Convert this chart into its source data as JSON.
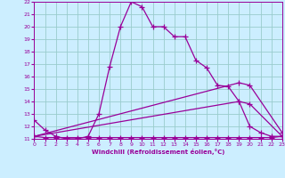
{
  "xlabel": "Windchill (Refroidissement éolien,°C)",
  "bg_color": "#cceeff",
  "grid_color": "#99cccc",
  "line_color": "#990099",
  "xmin": 0,
  "xmax": 23,
  "ymin": 11,
  "ymax": 22,
  "line1_x": [
    0,
    1,
    2,
    3,
    4,
    5,
    6,
    7,
    8,
    9,
    10,
    11,
    12,
    13,
    14,
    15,
    16,
    17,
    18,
    19,
    20,
    21,
    22,
    23
  ],
  "line1_y": [
    12.5,
    11.7,
    11.2,
    11.0,
    11.0,
    11.2,
    13.0,
    16.8,
    20.0,
    22.0,
    21.6,
    20.0,
    20.0,
    19.2,
    19.2,
    17.3,
    16.7,
    15.3,
    15.2,
    14.0,
    12.0,
    11.5,
    11.2,
    11.2
  ],
  "line2_x": [
    0,
    1,
    2,
    3,
    4,
    5,
    6,
    7,
    8,
    9,
    10,
    11,
    12,
    13,
    14,
    15,
    16,
    17,
    18,
    19,
    20,
    21,
    22,
    23
  ],
  "line2_y": [
    11.2,
    11.1,
    11.1,
    11.1,
    11.1,
    11.1,
    11.1,
    11.1,
    11.1,
    11.1,
    11.1,
    11.1,
    11.1,
    11.1,
    11.1,
    11.1,
    11.1,
    11.1,
    11.1,
    11.1,
    11.1,
    11.1,
    11.1,
    11.2
  ],
  "line3_x": [
    0,
    19,
    20,
    23
  ],
  "line3_y": [
    11.2,
    14.0,
    13.8,
    11.2
  ],
  "line4_x": [
    0,
    19,
    20,
    23
  ],
  "line4_y": [
    11.2,
    15.5,
    15.3,
    11.5
  ]
}
